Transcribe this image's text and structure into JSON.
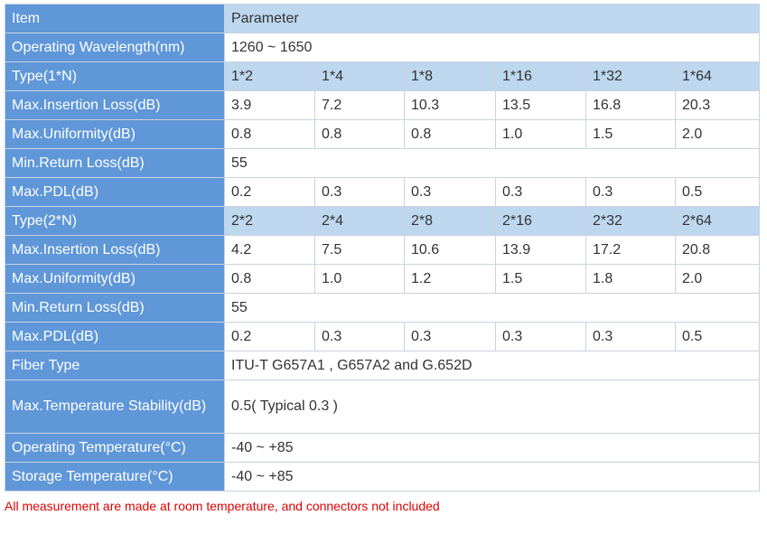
{
  "table": {
    "rows": [
      [
        "Item",
        "Parameter"
      ],
      [
        "Operating Wavelength(nm)",
        "1260 ~ 1650"
      ],
      [
        "Type(1*N)",
        "1*2",
        "1*4",
        "1*8",
        "1*16",
        "1*32",
        "1*64"
      ],
      [
        "Max.Insertion Loss(dB)",
        "3.9",
        "7.2",
        "10.3",
        "13.5",
        "16.8",
        "20.3"
      ],
      [
        "Max.Uniformity(dB)",
        "0.8",
        "0.8",
        "0.8",
        "1.0",
        "1.5",
        "2.0"
      ],
      [
        "Min.Return Loss(dB)",
        "55"
      ],
      [
        "Max.PDL(dB)",
        "0.2",
        "0.3",
        "0.3",
        "0.3",
        "0.3",
        "0.5"
      ],
      [
        "Type(2*N)",
        "2*2",
        "2*4",
        "2*8",
        "2*16",
        "2*32",
        "2*64"
      ],
      [
        "Max.Insertion Loss(dB)",
        "4.2",
        "7.5",
        "10.6",
        "13.9",
        "17.2",
        "20.8"
      ],
      [
        "Max.Uniformity(dB)",
        "0.8",
        "1.0",
        "1.2",
        "1.5",
        "1.8",
        "2.0"
      ],
      [
        "Min.Return Loss(dB)",
        "55"
      ],
      [
        "Max.PDL(dB)",
        "0.2",
        "0.3",
        "0.3",
        "0.3",
        "0.3",
        "0.5"
      ],
      [
        "Fiber Type",
        "ITU-T G657A1 , G657A2 and G.652D"
      ],
      [
        "Max.Temperature Stability(dB)",
        "0.5( Typical 0.3 )"
      ],
      [
        "Operating Temperature(°C)",
        "-40 ~ +85"
      ],
      [
        "Storage Temperature(°C)",
        "-40 ~ +85"
      ]
    ]
  },
  "footnote": "All measurement are made at room temperature, and connectors not included"
}
